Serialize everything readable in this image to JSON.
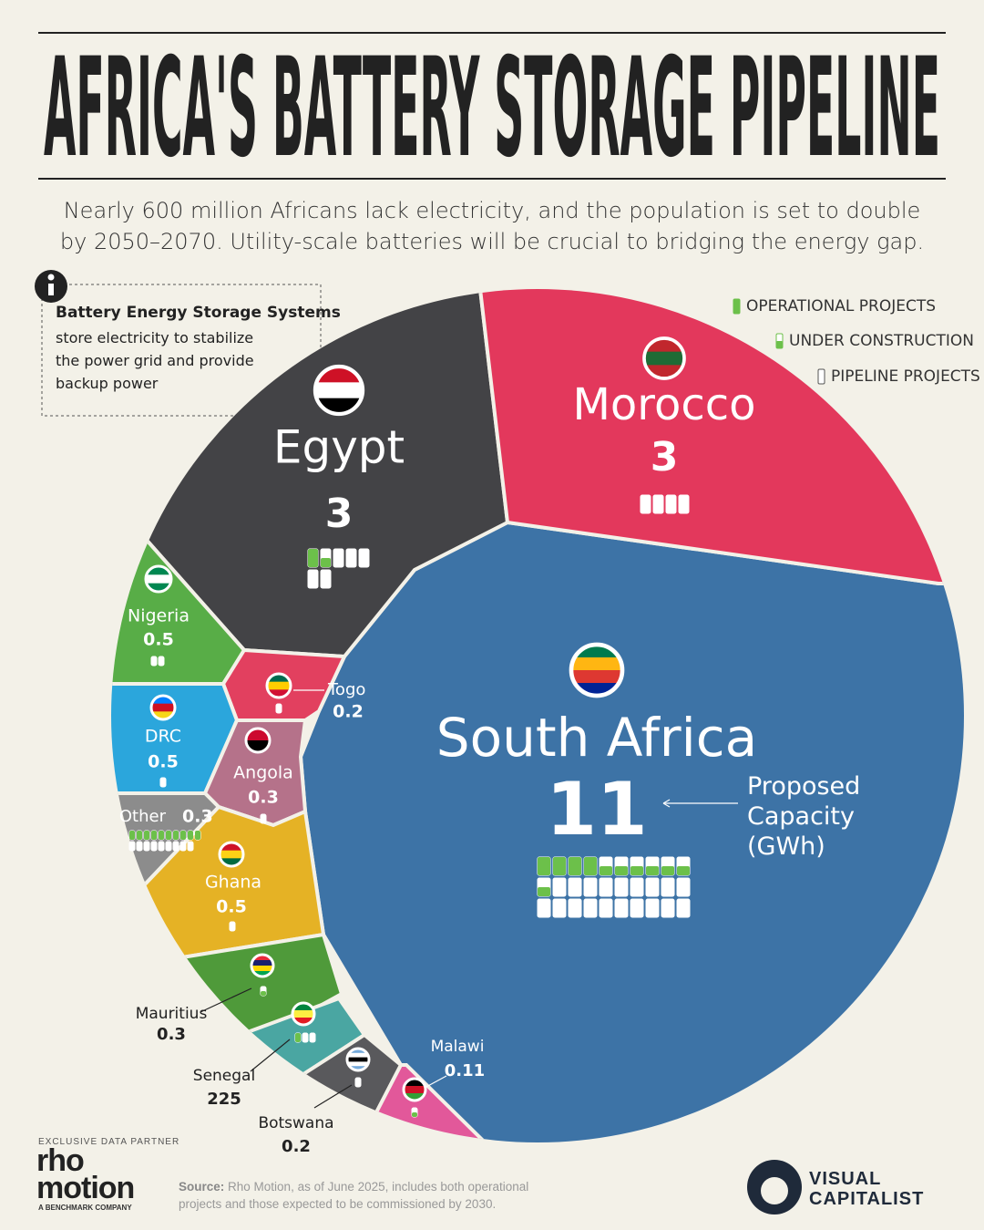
{
  "chart_data": {
    "type": "voronoi-treemap",
    "title": "AFRICA'S BATTERY STORAGE PIPELINE",
    "subtitle": "Nearly 600 million Africans lack electricity, and the population is set to double by 2050–2070. Utility-scale batteries will be crucial to bridging the energy gap.",
    "annotation": "Proposed Capacity (GWh)",
    "categories": [
      "South Africa",
      "Egypt",
      "Morocco",
      "Nigeria",
      "Togo",
      "DRC",
      "Angola",
      "Other",
      "Ghana",
      "Mauritius",
      "Senegal",
      "Botswana",
      "Malawi"
    ],
    "values": [
      11,
      3,
      3,
      0.5,
      0.2,
      0.5,
      0.3,
      0.3,
      0.5,
      0.3,
      225,
      0.2,
      0.11
    ],
    "colors": [
      "#3d73a6",
      "#434346",
      "#e3385c",
      "#58ad47",
      "#e2405f",
      "#2ba6dc",
      "#b5728a",
      "#8c8c8c",
      "#e5b225",
      "#4f9a3a",
      "#4aa6a2",
      "#59595c",
      "#e2589a"
    ],
    "series": [
      {
        "name": "OPERATIONAL PROJECTS",
        "color": "#6cc04a",
        "values": [
          4,
          1,
          0,
          0,
          0,
          0,
          0,
          10,
          0,
          0,
          1,
          0,
          0
        ]
      },
      {
        "name": "UNDER CONSTRUCTION",
        "color": "#6cc04a",
        "values": [
          7,
          1,
          0,
          0,
          0,
          0,
          0,
          0,
          0,
          1,
          0,
          0,
          1
        ]
      },
      {
        "name": "PIPELINE PROJECTS",
        "color": "#ffffff",
        "values": [
          19,
          5,
          4,
          2,
          1,
          1,
          1,
          9,
          1,
          0,
          2,
          1,
          0
        ]
      }
    ]
  },
  "info": {
    "title": "Battery Energy Storage Systems",
    "text": "store electricity to stabilize the power grid and provide backup power"
  },
  "footer": {
    "partner_label": "EXCLUSIVE DATA PARTNER",
    "partner": "rho motion",
    "partner_tagline": "A BENCHMARK COMPANY",
    "source_label": "Source:",
    "source": "Rho Motion, as of June 2025, includes both operational projects and those expected to be commissioned by 2030.",
    "brand": "VISUAL CAPITALIST"
  }
}
